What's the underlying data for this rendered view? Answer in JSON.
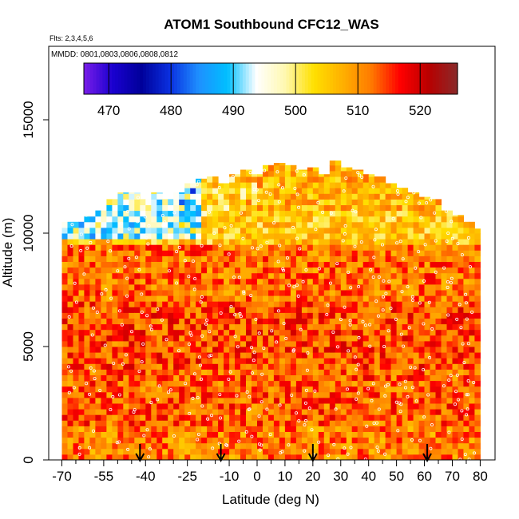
{
  "chart_data": {
    "type": "heatmap",
    "title": "ATOM1 Southbound CFC12_WAS",
    "flights_label": "Flts: 2,3,4,5,6",
    "dates_label": "MMDD: 0801,0803,0806,0808,0812",
    "xlabel": "Latitude (deg N)",
    "ylabel": "Altitude (m)",
    "xlim": [
      -70,
      82
    ],
    "ylim": [
      0,
      17500
    ],
    "x_ticks": [
      -70,
      -55,
      -40,
      -25,
      -10,
      0,
      10,
      20,
      30,
      40,
      50,
      60,
      70,
      80
    ],
    "x_minor_ticks": [
      -65,
      -60,
      -50,
      -45,
      -35,
      -30,
      -20,
      -15,
      -5,
      5,
      15,
      25,
      35,
      45,
      55,
      65,
      75
    ],
    "y_ticks": [
      0,
      5000,
      10000,
      15000
    ],
    "colorbar": {
      "min": 466,
      "max": 526,
      "tick_values": [
        470,
        480,
        490,
        500,
        510,
        520
      ],
      "tick_labels": [
        "470",
        "480",
        "490",
        "500",
        "510",
        "520"
      ],
      "colors": [
        "#7a1ee8",
        "#1a00d0",
        "#00009a",
        "#0a30e0",
        "#1e90ff",
        "#00bfff",
        "#ffffff",
        "#fff8b0",
        "#ffe000",
        "#ffb000",
        "#ff7a00",
        "#ff0000",
        "#b80000",
        "#8a2a2a"
      ]
    },
    "arrows_lat": [
      -42,
      -13,
      20,
      61
    ],
    "envelope_lat": [
      -70,
      -66,
      -62,
      -58,
      -54,
      -50,
      -46,
      -42,
      -38,
      -34,
      -30,
      -26,
      -22,
      -18,
      -14,
      -10,
      -6,
      -2,
      2,
      6,
      10,
      14,
      18,
      22,
      26,
      30,
      34,
      38,
      42,
      46,
      50,
      54,
      58,
      62,
      66,
      70,
      74,
      78,
      80
    ],
    "envelope_top_alt": [
      10500,
      10500,
      10800,
      11000,
      11500,
      11800,
      11800,
      11500,
      11800,
      11500,
      11800,
      12200,
      12400,
      12500,
      12200,
      12600,
      12800,
      12600,
      13000,
      13100,
      13000,
      12800,
      12900,
      12600,
      13200,
      12900,
      12800,
      12600,
      12500,
      12200,
      12000,
      11800,
      11600,
      11500,
      11000,
      10800,
      10500,
      10200,
      9500
    ],
    "value_bands": [
      {
        "alt_min": 0,
        "alt_max": 1500,
        "mean": 511
      },
      {
        "alt_min": 1500,
        "alt_max": 4000,
        "mean": 513
      },
      {
        "alt_min": 4000,
        "alt_max": 7000,
        "mean": 514
      },
      {
        "alt_min": 7000,
        "alt_max": 9500,
        "mean": 512
      },
      {
        "alt_min": 9500,
        "alt_max": 11000,
        "mean": 505
      },
      {
        "alt_min": 11000,
        "alt_max": 13500,
        "mean": 507
      }
    ]
  }
}
